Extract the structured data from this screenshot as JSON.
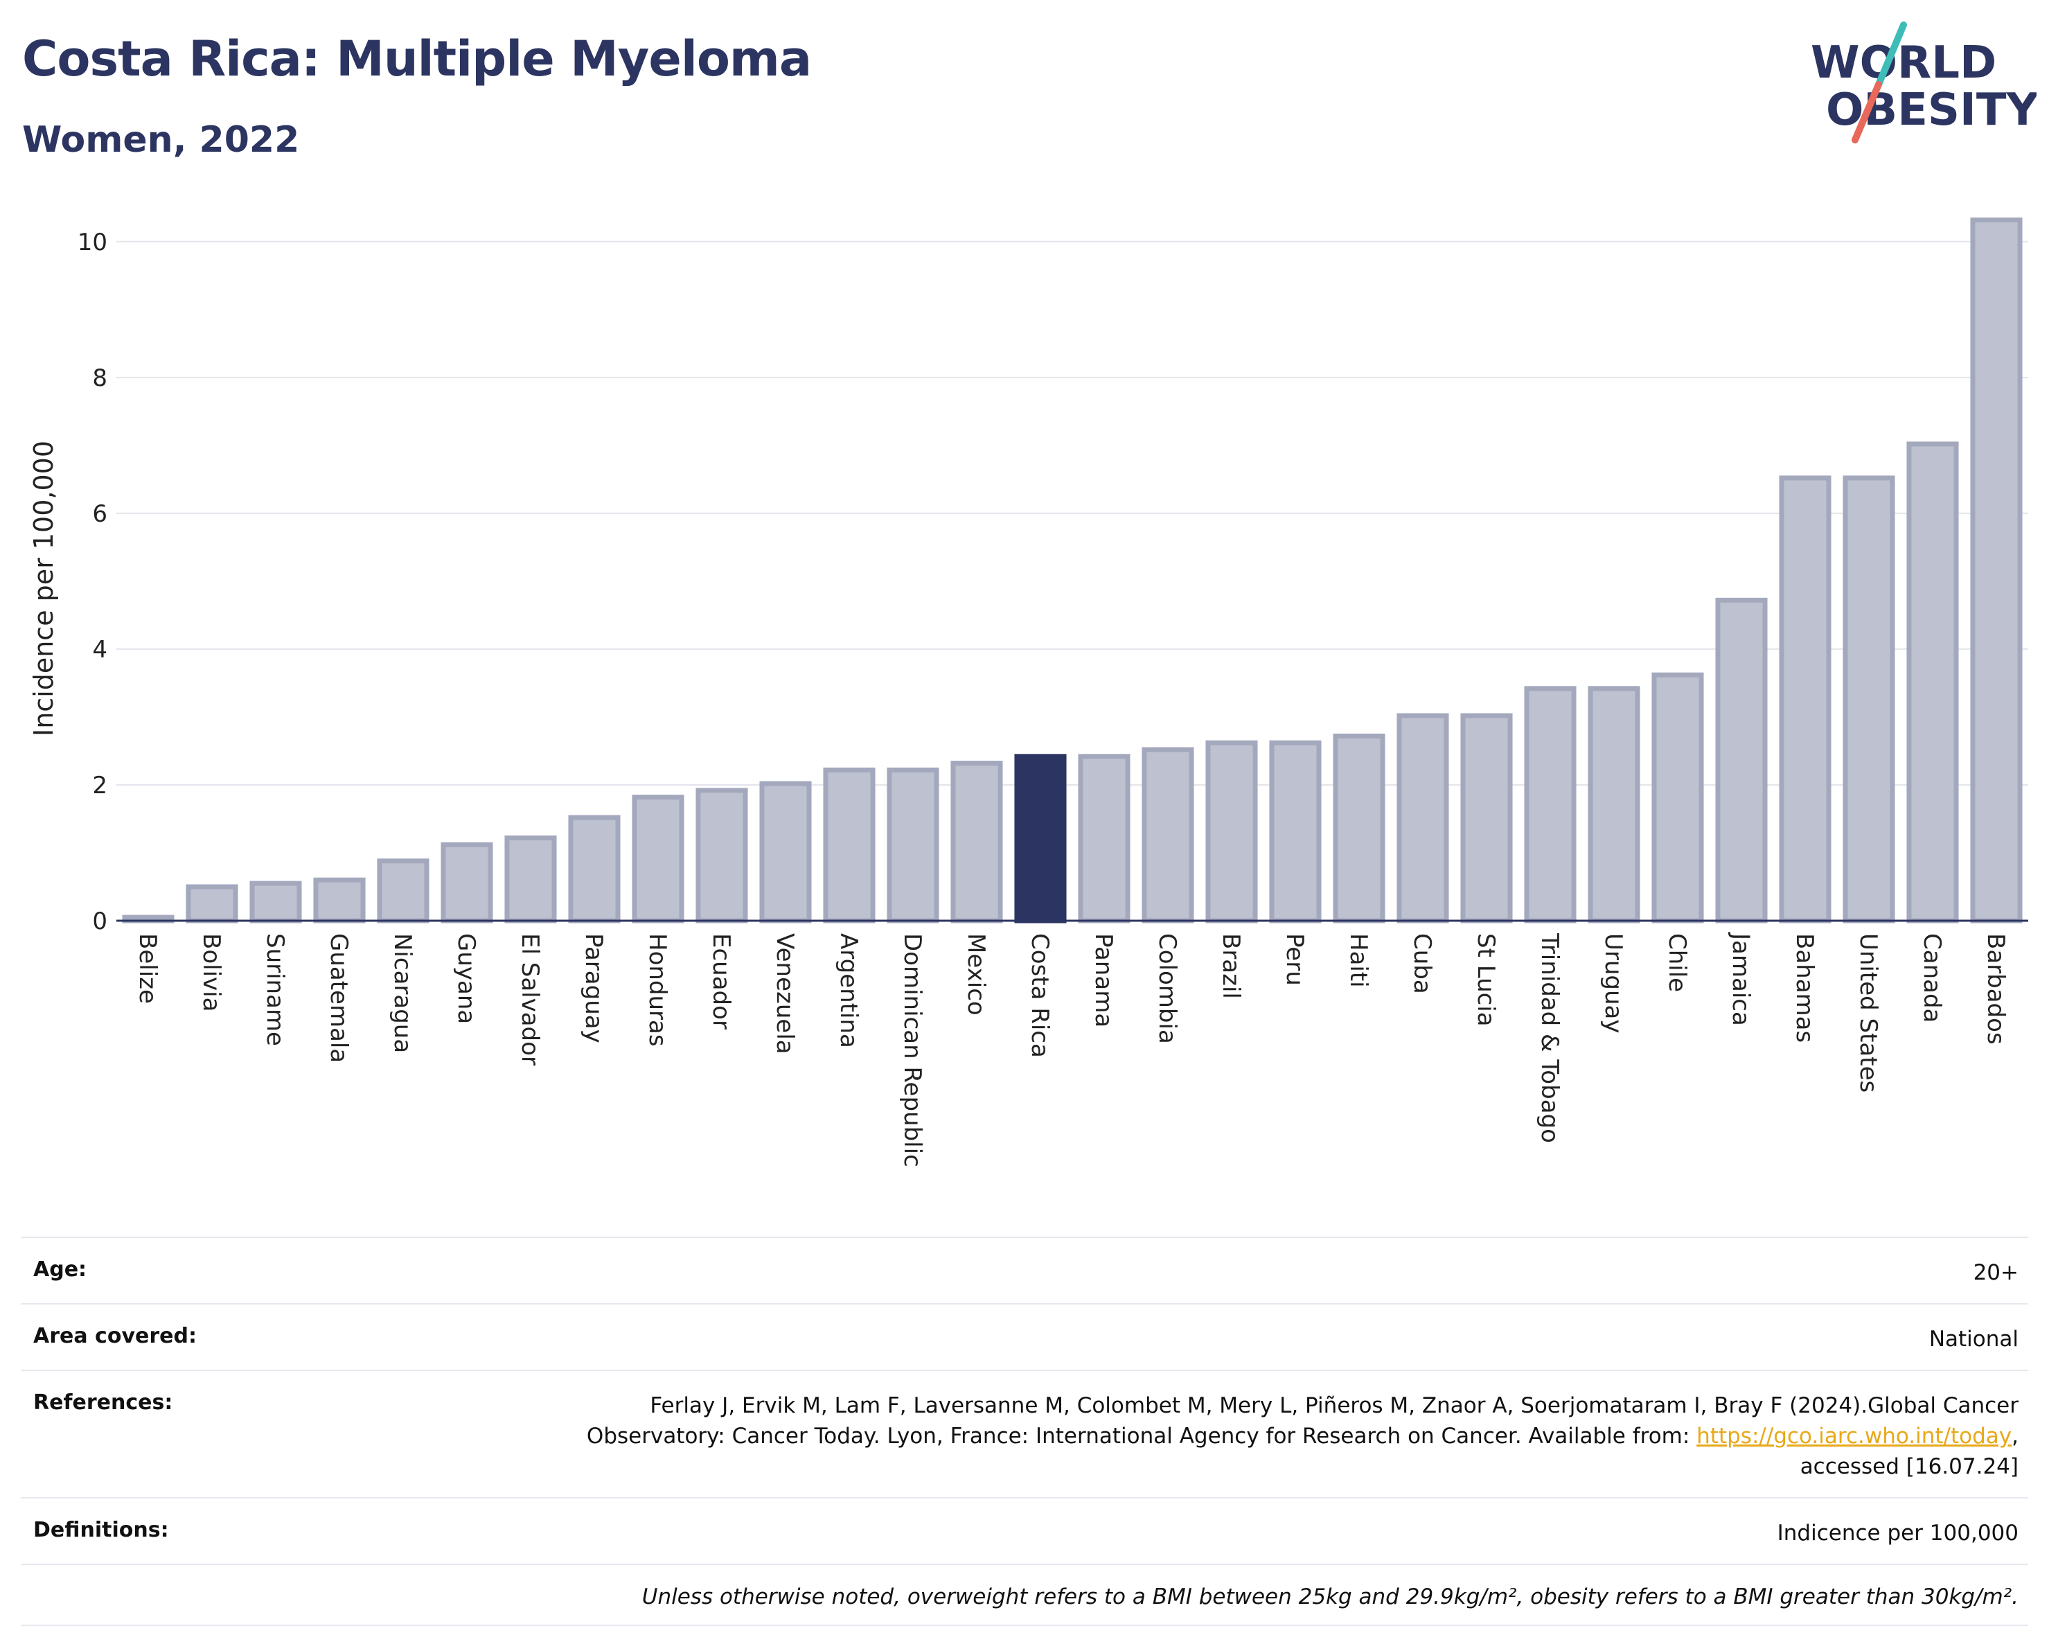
{
  "header": {
    "title": "Costa Rica: Multiple Myeloma",
    "subtitle": "Women, 2022"
  },
  "logo": {
    "line1": "WORLD",
    "line2": "OBESITY",
    "colors": {
      "text": "#2c3561",
      "slash_top": "#3dbcb8",
      "slash_bottom": "#e8685a"
    }
  },
  "colors": {
    "bar": "#bec1cf",
    "bar_border": "#a3a8bd",
    "highlight": "#2c3561",
    "link": "#e8a817"
  },
  "chart_data": {
    "type": "bar",
    "ylabel": "Incidence per 100,000",
    "ylim": [
      0,
      10.6
    ],
    "yticks": [
      0,
      2,
      4,
      6,
      8,
      10
    ],
    "grid": true,
    "highlight": "Costa Rica",
    "categories": [
      "Belize",
      "Bolivia",
      "Suriname",
      "Guatemala",
      "Nicaragua",
      "Guyana",
      "El Salvador",
      "Paraguay",
      "Honduras",
      "Ecuador",
      "Venezuela",
      "Argentina",
      "Dominican Republic",
      "Mexico",
      "Costa Rica",
      "Panama",
      "Colombia",
      "Brazil",
      "Peru",
      "Haiti",
      "Cuba",
      "St Lucia",
      "Trinidad & Tobago",
      "Uruguay",
      "Chile",
      "Jamaica",
      "Bahamas",
      "United States",
      "Canada",
      "Barbados"
    ],
    "values": [
      0.05,
      0.5,
      0.55,
      0.6,
      0.88,
      1.12,
      1.22,
      1.52,
      1.82,
      1.92,
      2.02,
      2.22,
      2.22,
      2.32,
      2.42,
      2.42,
      2.52,
      2.62,
      2.62,
      2.72,
      3.02,
      3.02,
      3.42,
      3.42,
      3.62,
      4.72,
      6.52,
      6.52,
      7.02,
      10.32
    ]
  },
  "meta": {
    "age_label": "Age:",
    "age_value": "20+",
    "area_label": "Area covered:",
    "area_value": "National",
    "references_label": "References:",
    "references_text_1": "Ferlay J, Ervik M, Lam F, Laversanne M, Colombet M, Mery L, Piñeros M, Znaor A, Soerjomataram I, Bray F (2024).Global Cancer Observatory: Cancer Today. Lyon, France: International Agency for Research on Cancer. Available from: ",
    "references_link": "https://gco.iarc.who.int/today",
    "references_text_2": ", accessed [16.07.24]",
    "definitions_label": "Definitions:",
    "definitions_value": "Indicence per 100,000",
    "note": "Unless otherwise noted, overweight refers to a BMI between 25kg and 29.9kg/m², obesity refers to a BMI greater than 30kg/m²."
  }
}
